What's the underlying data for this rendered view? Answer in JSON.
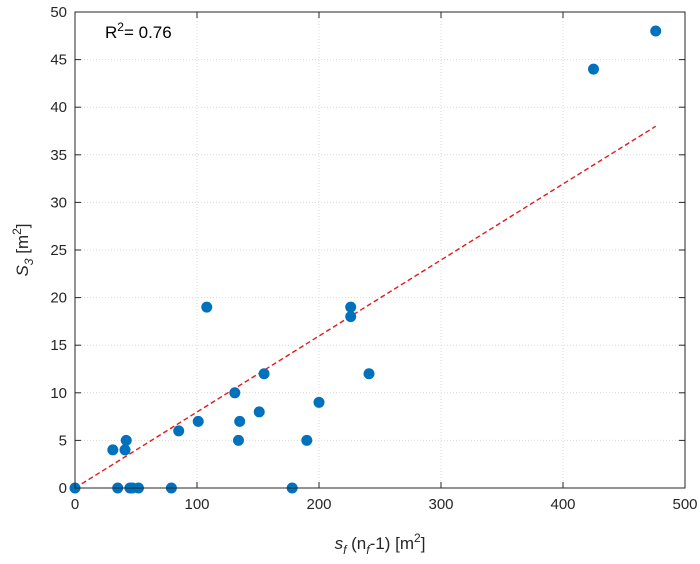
{
  "chart_data": {
    "type": "scatter",
    "title": "",
    "xlabel": {
      "base": "s",
      "sub": "f",
      "mid": " (n",
      "sub2": "f",
      "tail": "-1) [m",
      "sup": "2",
      "end": "]"
    },
    "ylabel": {
      "base": "S",
      "sub": "3",
      "tail": " [m",
      "sup": "2",
      "end": "]"
    },
    "annotation": {
      "text": "R",
      "sup": "2",
      "value": "= 0.76"
    },
    "xlim": [
      0,
      500
    ],
    "ylim": [
      0,
      50
    ],
    "xticks": [
      0,
      100,
      200,
      300,
      400,
      500
    ],
    "yticks": [
      0,
      5,
      10,
      15,
      20,
      25,
      30,
      35,
      40,
      45,
      50
    ],
    "grid": true,
    "colors": {
      "points": "#0072BD",
      "fit": "#e31a1c",
      "grid": "#d9d9d9",
      "axis": "#262626"
    },
    "series": [
      {
        "values": [
          [
            0,
            0
          ],
          [
            31,
            4
          ],
          [
            35,
            0
          ],
          [
            41,
            4
          ],
          [
            42,
            5
          ],
          [
            45,
            0
          ],
          [
            47,
            0
          ],
          [
            52,
            0
          ],
          [
            79,
            0
          ],
          [
            85,
            6
          ],
          [
            101,
            7
          ],
          [
            108,
            19
          ],
          [
            131,
            10
          ],
          [
            134,
            5
          ],
          [
            135,
            7
          ],
          [
            151,
            8
          ],
          [
            155,
            12
          ],
          [
            178,
            0
          ],
          [
            190,
            5
          ],
          [
            200,
            9
          ],
          [
            226,
            18
          ],
          [
            226,
            19
          ],
          [
            241,
            12
          ],
          [
            425,
            44
          ],
          [
            476,
            48
          ]
        ]
      }
    ],
    "fit_line": {
      "style": "dashed",
      "x": [
        0,
        476
      ],
      "y": [
        0,
        38
      ]
    }
  }
}
